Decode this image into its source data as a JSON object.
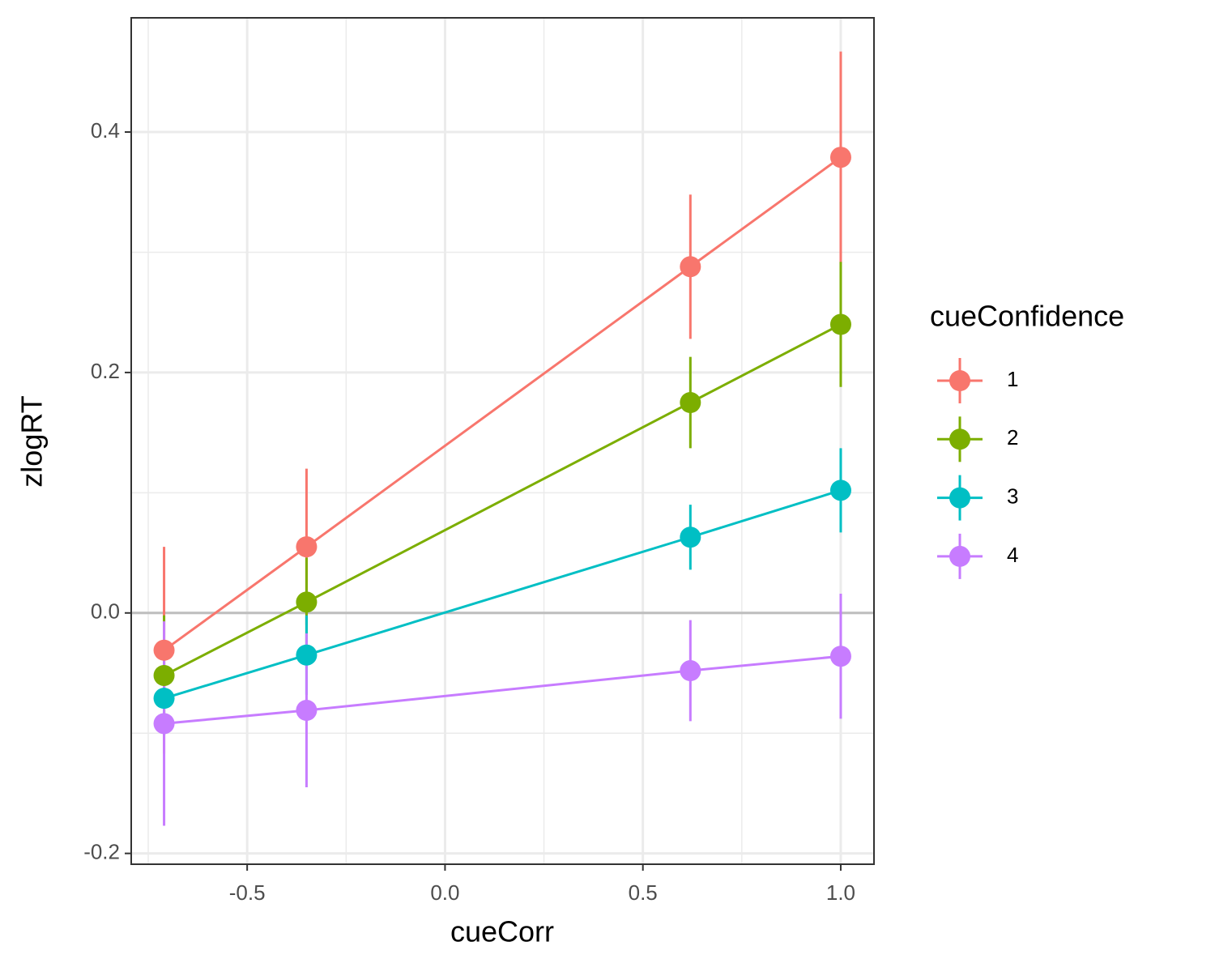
{
  "chart_data": {
    "type": "line",
    "x_label": "cueCorr",
    "y_label": "zlogRT",
    "legend_title": "cueConfidence",
    "x": [
      -0.71,
      -0.35,
      0.62,
      1.0
    ],
    "series": [
      {
        "name": "1",
        "color": "#f8766d",
        "values": [
          -0.031,
          0.055,
          0.288,
          0.379
        ],
        "errors": [
          0.086,
          0.065,
          0.06,
          0.088
        ]
      },
      {
        "name": "2",
        "color": "#7cae00",
        "values": [
          -0.052,
          0.009,
          0.175,
          0.24
        ],
        "errors": [
          0.05,
          0.037,
          0.038,
          0.052
        ]
      },
      {
        "name": "3",
        "color": "#00bfc4",
        "values": [
          -0.071,
          -0.035,
          0.063,
          0.102
        ],
        "errors": [
          0.03,
          0.033,
          0.027,
          0.035
        ]
      },
      {
        "name": "4",
        "color": "#c77cff",
        "values": [
          -0.092,
          -0.081,
          -0.048,
          -0.036
        ],
        "errors": [
          0.085,
          0.064,
          0.042,
          0.052
        ]
      }
    ],
    "xlim": [
      -0.793,
      1.084
    ],
    "ylim": [
      -0.209,
      0.495
    ],
    "xticks": [
      -0.5,
      0.0,
      0.5,
      1.0
    ],
    "yticks": [
      -0.2,
      0.0,
      0.2,
      0.4
    ],
    "xtick_labels": [
      "-0.5",
      "0.0",
      "0.5",
      "1.0"
    ],
    "ytick_labels": [
      "-0.2",
      "0.0",
      "0.2",
      "0.4"
    ],
    "hline": 0,
    "grid": true,
    "minor_grid": true,
    "legend": "right"
  }
}
